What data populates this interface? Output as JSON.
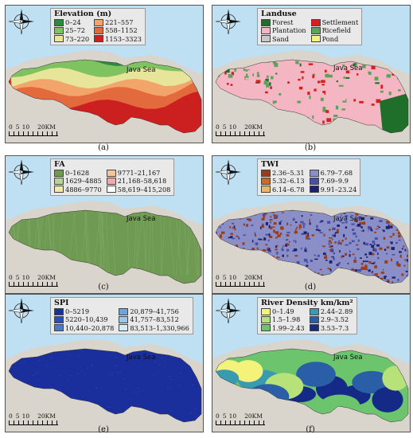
{
  "sea_label": "Java Sea",
  "scale": {
    "ticks": [
      "0",
      "5",
      "10",
      "20KM"
    ]
  },
  "panels": [
    {
      "caption": "(a)",
      "title": "Elevation (m)",
      "cols": 2,
      "classes": [
        {
          "label": "0–24",
          "color": "#2e8b3a"
        },
        {
          "label": "221–557",
          "color": "#f3a46b"
        },
        {
          "label": "25–72",
          "color": "#7fc260"
        },
        {
          "label": "558–1152",
          "color": "#e36a3c"
        },
        {
          "label": "73–220",
          "color": "#e6e59a"
        },
        {
          "label": "1153–3323",
          "color": "#cc1f1f"
        }
      ]
    },
    {
      "caption": "(b)",
      "title": "Landuse",
      "cols": 2,
      "classes": [
        {
          "label": "Forest",
          "color": "#1f6e2a"
        },
        {
          "label": "Settlement",
          "color": "#d42020"
        },
        {
          "label": "Plantation",
          "color": "#f4b6c2"
        },
        {
          "label": "Ricefield",
          "color": "#5aa35a"
        },
        {
          "label": "Sand",
          "color": "#c8c8c8"
        },
        {
          "label": "Pond",
          "color": "#f2f08c"
        }
      ]
    },
    {
      "caption": "(c)",
      "title": "FA",
      "cols": 2,
      "classes": [
        {
          "label": "0–1628",
          "color": "#6f9a52"
        },
        {
          "label": "9771–21,167",
          "color": "#f3c79a"
        },
        {
          "label": "1629–4885",
          "color": "#b7d39a"
        },
        {
          "label": "21,168–58,618",
          "color": "#f1a9a9"
        },
        {
          "label": "4886–9770",
          "color": "#f2e9a8"
        },
        {
          "label": "58,619–415,208",
          "color": "#ffffff"
        }
      ]
    },
    {
      "caption": "(d)",
      "title": "TWI",
      "cols": 2,
      "classes": [
        {
          "label": "2.36–5.31",
          "color": "#9a3d1c"
        },
        {
          "label": "6.79–7.68",
          "color": "#8b8fc7"
        },
        {
          "label": "5.32–6.13",
          "color": "#c86a2c"
        },
        {
          "label": "7.69–9.9",
          "color": "#4a4fa6"
        },
        {
          "label": "6.14–6.78",
          "color": "#e9b867"
        },
        {
          "label": "9.91–23.24",
          "color": "#1e1f6e"
        }
      ]
    },
    {
      "caption": "(e)",
      "title": "SPI",
      "cols": 2,
      "classes": [
        {
          "label": "0–5219",
          "color": "#1a2f9c"
        },
        {
          "label": "20,879–41,756",
          "color": "#6fa3dc"
        },
        {
          "label": "5220–10,439",
          "color": "#2a4fb8"
        },
        {
          "label": "41,757–83,512",
          "color": "#9cc6ea"
        },
        {
          "label": "10,440–20,878",
          "color": "#4a78cc"
        },
        {
          "label": "83,513–1,330,966",
          "color": "#d5ebf8"
        }
      ]
    },
    {
      "caption": "(f)",
      "title": "River Density km/km²",
      "cols": 2,
      "classes": [
        {
          "label": "0–1.49",
          "color": "#f3f27a"
        },
        {
          "label": "2.44–2.89",
          "color": "#3a9bb0"
        },
        {
          "label": "1.5–1.98",
          "color": "#b7e27a"
        },
        {
          "label": "2.9–3.52",
          "color": "#2a5fa8"
        },
        {
          "label": "1.99–2.43",
          "color": "#6cc56c"
        },
        {
          "label": "3.53–7.3",
          "color": "#142a86"
        }
      ]
    }
  ]
}
